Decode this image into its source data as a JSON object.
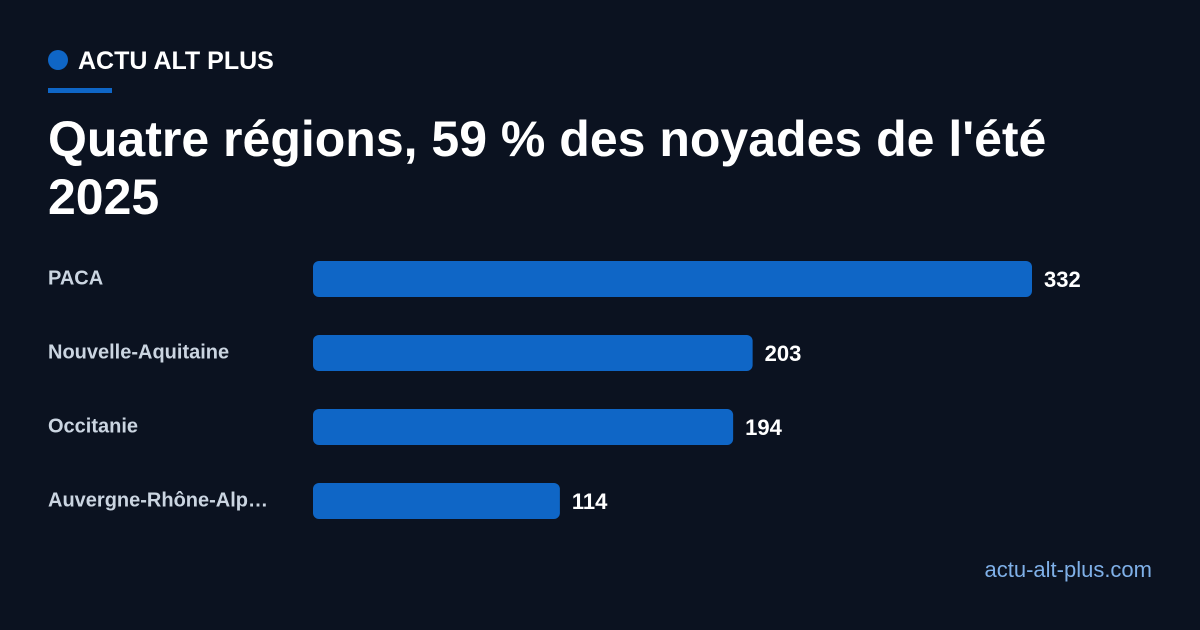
{
  "brand": "ACTU ALT PLUS",
  "footer": "actu-alt-plus.com",
  "chart_data": {
    "type": "bar",
    "orientation": "horizontal",
    "title": "Quatre régions, 59 % des noyades de l'été 2025",
    "categories": [
      "PACA",
      "Nouvelle-Aquitaine",
      "Occitanie",
      "Auvergne-Rhône-Alp…"
    ],
    "values": [
      332,
      203,
      194,
      114
    ],
    "color": "#0f66c6"
  }
}
